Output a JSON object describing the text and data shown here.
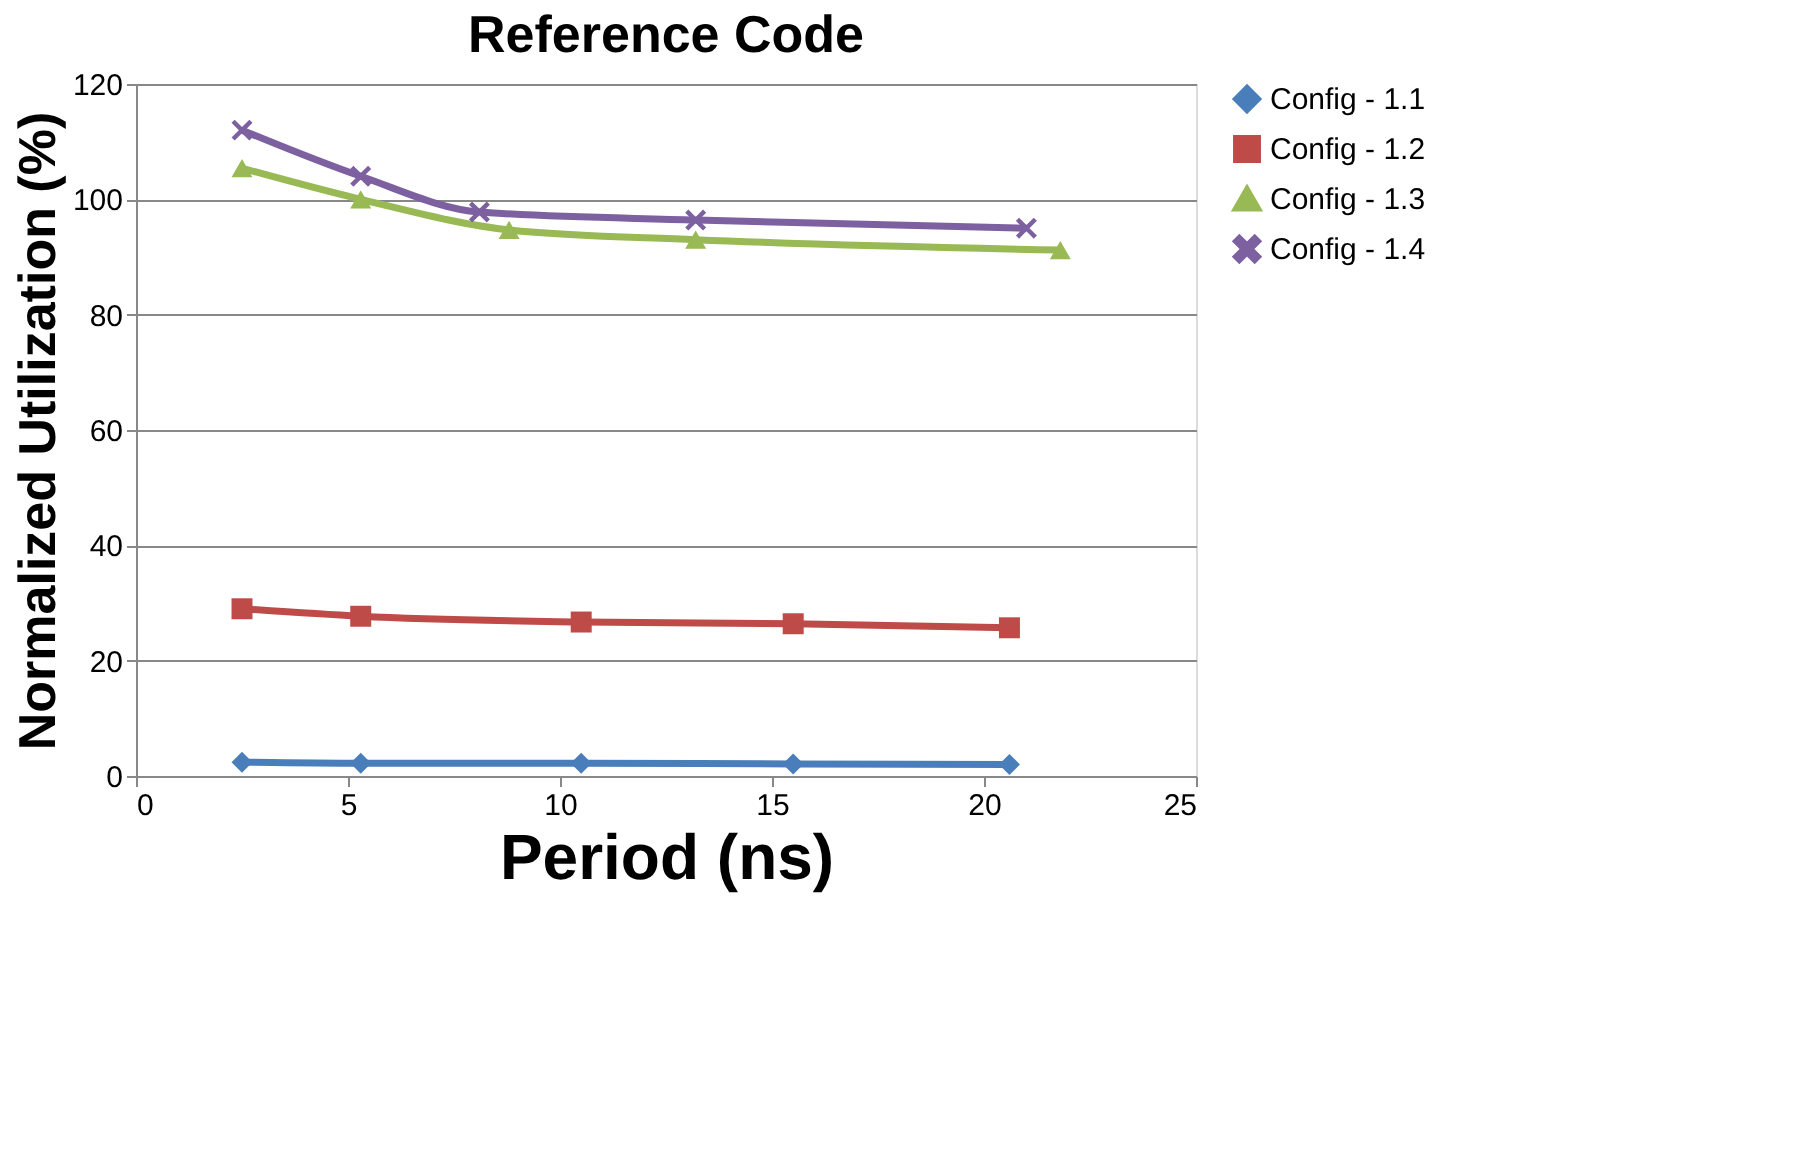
{
  "chart_data": {
    "type": "line",
    "title": "Reference Code",
    "xlabel": "Period (ns)",
    "ylabel": "Normalized Utilization  (%)",
    "xlim": [
      0,
      25
    ],
    "xticks": [
      0,
      5,
      10,
      15,
      20,
      25
    ],
    "ylim": [
      0,
      120
    ],
    "yticks": [
      0,
      20,
      40,
      60,
      80,
      100,
      120
    ],
    "grid": "y",
    "legend": "right",
    "series": [
      {
        "name": "Config - 1.1",
        "color": "#4a7ebb",
        "marker": "diamond",
        "x": [
          2.5,
          5.3,
          10.5,
          15.5,
          20.6
        ],
        "values": [
          2.4,
          2.2,
          2.2,
          2.1,
          2.0
        ]
      },
      {
        "name": "Config - 1.2",
        "color": "#be4b48",
        "marker": "square",
        "x": [
          2.5,
          5.3,
          10.5,
          15.5,
          20.6
        ],
        "values": [
          29,
          27.7,
          26.7,
          26.4,
          25.7
        ]
      },
      {
        "name": "Config - 1.3",
        "color": "#98b954",
        "marker": "triangle",
        "x": [
          2.5,
          5.3,
          8.8,
          13.2,
          21.8
        ],
        "values": [
          105.4,
          100,
          94.7,
          93,
          91.2
        ]
      },
      {
        "name": "Config - 1.4",
        "color": "#7d60a0",
        "marker": "cross",
        "x": [
          2.5,
          5.3,
          8.1,
          13.2,
          21.0
        ],
        "values": [
          112,
          104,
          97.8,
          96.4,
          95
        ]
      }
    ]
  }
}
